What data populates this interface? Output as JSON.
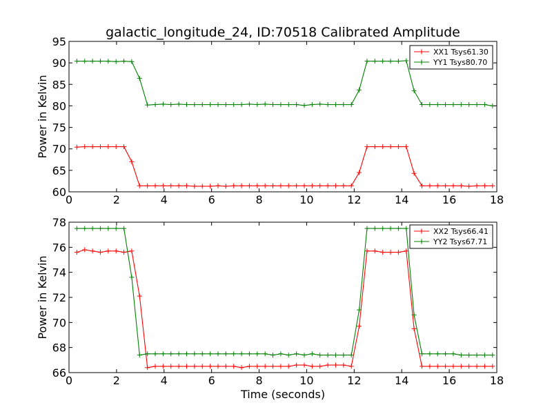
{
  "figure": {
    "title": "galactic_longitude_24, ID:70518 Calibrated Amplitude"
  },
  "chart_data": [
    {
      "type": "line",
      "title": "galactic_longitude_24, ID:70518 Calibrated Amplitude",
      "xlabel": "",
      "ylabel": "Power in Kelvin",
      "xlim": [
        0,
        18
      ],
      "ylim": [
        60,
        95
      ],
      "xticks": [
        0,
        2,
        4,
        6,
        8,
        10,
        12,
        14,
        16,
        18
      ],
      "yticks": [
        60,
        65,
        70,
        75,
        80,
        85,
        90,
        95
      ],
      "grid": false,
      "legend_position": "top-right",
      "x": [
        0.33,
        0.66,
        0.99,
        1.32,
        1.65,
        1.98,
        2.31,
        2.64,
        2.97,
        3.3,
        3.63,
        3.96,
        4.29,
        4.62,
        4.95,
        5.28,
        5.61,
        5.94,
        6.27,
        6.6,
        6.93,
        7.26,
        7.59,
        7.92,
        8.25,
        8.58,
        8.91,
        9.24,
        9.57,
        9.9,
        10.23,
        10.56,
        10.89,
        11.22,
        11.55,
        11.88,
        12.21,
        12.54,
        12.87,
        13.2,
        13.53,
        13.86,
        14.19,
        14.52,
        14.85,
        15.18,
        15.51,
        15.84,
        16.17,
        16.5,
        16.83,
        17.16,
        17.49,
        17.82
      ],
      "series": [
        {
          "name": "XX1 Tsys61.30",
          "color": "#ff0000",
          "values": [
            70.4,
            70.5,
            70.5,
            70.5,
            70.5,
            70.5,
            70.5,
            67.0,
            61.4,
            61.4,
            61.4,
            61.4,
            61.4,
            61.4,
            61.4,
            61.3,
            61.3,
            61.3,
            61.4,
            61.3,
            61.4,
            61.4,
            61.4,
            61.4,
            61.4,
            61.4,
            61.4,
            61.4,
            61.4,
            61.4,
            61.4,
            61.4,
            61.4,
            61.4,
            61.4,
            61.4,
            64.5,
            70.5,
            70.5,
            70.5,
            70.5,
            70.5,
            70.5,
            64.3,
            61.4,
            61.4,
            61.4,
            61.4,
            61.4,
            61.4,
            61.3,
            61.4,
            61.4,
            61.4
          ]
        },
        {
          "name": "YY1 Tsys80.70",
          "color": "#008000",
          "values": [
            90.4,
            90.4,
            90.4,
            90.4,
            90.4,
            90.3,
            90.4,
            90.3,
            86.4,
            80.2,
            80.3,
            80.4,
            80.3,
            80.4,
            80.3,
            80.3,
            80.3,
            80.3,
            80.3,
            80.3,
            80.3,
            80.3,
            80.4,
            80.3,
            80.4,
            80.3,
            80.3,
            80.3,
            80.3,
            80.1,
            80.3,
            80.4,
            80.3,
            80.3,
            80.3,
            80.3,
            83.7,
            90.4,
            90.4,
            90.4,
            90.4,
            90.4,
            90.5,
            83.5,
            80.3,
            80.3,
            80.3,
            80.3,
            80.3,
            80.3,
            80.3,
            80.3,
            80.3,
            80.0
          ]
        }
      ]
    },
    {
      "type": "line",
      "title": "",
      "xlabel": "Time (seconds)",
      "ylabel": "Power in Kelvin",
      "xlim": [
        0,
        18
      ],
      "ylim": [
        66,
        78
      ],
      "xticks": [
        0,
        2,
        4,
        6,
        8,
        10,
        12,
        14,
        16,
        18
      ],
      "yticks": [
        66,
        68,
        70,
        72,
        74,
        76,
        78
      ],
      "grid": false,
      "legend_position": "top-right",
      "x": [
        0.33,
        0.66,
        0.99,
        1.32,
        1.65,
        1.98,
        2.31,
        2.64,
        2.97,
        3.3,
        3.63,
        3.96,
        4.29,
        4.62,
        4.95,
        5.28,
        5.61,
        5.94,
        6.27,
        6.6,
        6.93,
        7.26,
        7.59,
        7.92,
        8.25,
        8.58,
        8.91,
        9.24,
        9.57,
        9.9,
        10.23,
        10.56,
        10.89,
        11.22,
        11.55,
        11.88,
        12.21,
        12.54,
        12.87,
        13.2,
        13.53,
        13.86,
        14.19,
        14.52,
        14.85,
        15.18,
        15.51,
        15.84,
        16.17,
        16.5,
        16.83,
        17.16,
        17.49,
        17.82
      ],
      "series": [
        {
          "name": "XX2 Tsys66.41",
          "color": "#ff0000",
          "values": [
            75.6,
            75.8,
            75.7,
            75.6,
            75.7,
            75.7,
            75.6,
            75.7,
            72.1,
            66.4,
            66.5,
            66.5,
            66.5,
            66.5,
            66.5,
            66.5,
            66.5,
            66.5,
            66.5,
            66.5,
            66.5,
            66.4,
            66.5,
            66.5,
            66.5,
            66.5,
            66.5,
            66.5,
            66.6,
            66.6,
            66.5,
            66.5,
            66.6,
            66.6,
            66.6,
            66.5,
            69.7,
            75.7,
            75.7,
            75.6,
            75.6,
            75.6,
            75.7,
            69.5,
            66.5,
            66.5,
            66.5,
            66.5,
            66.5,
            66.5,
            66.5,
            66.5,
            66.5,
            66.5
          ]
        },
        {
          "name": "YY2 Tsys67.71",
          "color": "#008000",
          "values": [
            77.5,
            77.5,
            77.5,
            77.5,
            77.5,
            77.5,
            77.5,
            73.6,
            67.4,
            67.5,
            67.5,
            67.5,
            67.5,
            67.5,
            67.5,
            67.5,
            67.5,
            67.5,
            67.5,
            67.5,
            67.5,
            67.5,
            67.5,
            67.5,
            67.5,
            67.4,
            67.5,
            67.4,
            67.5,
            67.4,
            67.5,
            67.4,
            67.4,
            67.4,
            67.4,
            67.4,
            71.0,
            77.5,
            77.5,
            77.5,
            77.5,
            77.5,
            77.5,
            70.6,
            67.5,
            67.5,
            67.5,
            67.5,
            67.5,
            67.4,
            67.4,
            67.4,
            67.4,
            67.4
          ]
        }
      ]
    }
  ]
}
